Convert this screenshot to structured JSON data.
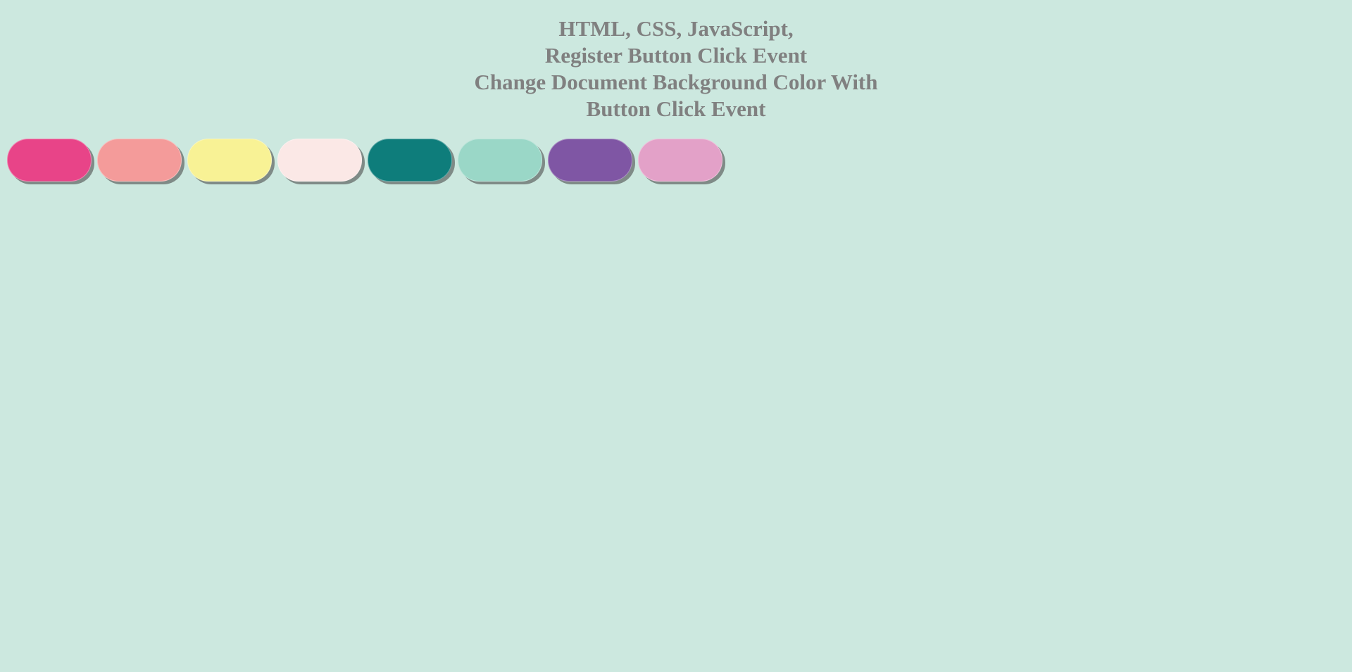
{
  "heading": {
    "lines": [
      "HTML, CSS, JavaScript,",
      "Register Button Click Event",
      "Change Document Background Color With",
      "Button Click Event"
    ]
  },
  "colors": {
    "page_background": "#cce8df",
    "heading_text": "#808080"
  },
  "buttons": [
    {
      "name": "pink-button",
      "color": "#e84488"
    },
    {
      "name": "salmon-button",
      "color": "#f49b9a"
    },
    {
      "name": "yellow-button",
      "color": "#f8f295"
    },
    {
      "name": "blush-button",
      "color": "#fbe8e6"
    },
    {
      "name": "teal-button",
      "color": "#0e7d7b"
    },
    {
      "name": "mint-button",
      "color": "#9ad7c7"
    },
    {
      "name": "purple-button",
      "color": "#7f56a4"
    },
    {
      "name": "orchid-button",
      "color": "#e3a1c8"
    }
  ]
}
